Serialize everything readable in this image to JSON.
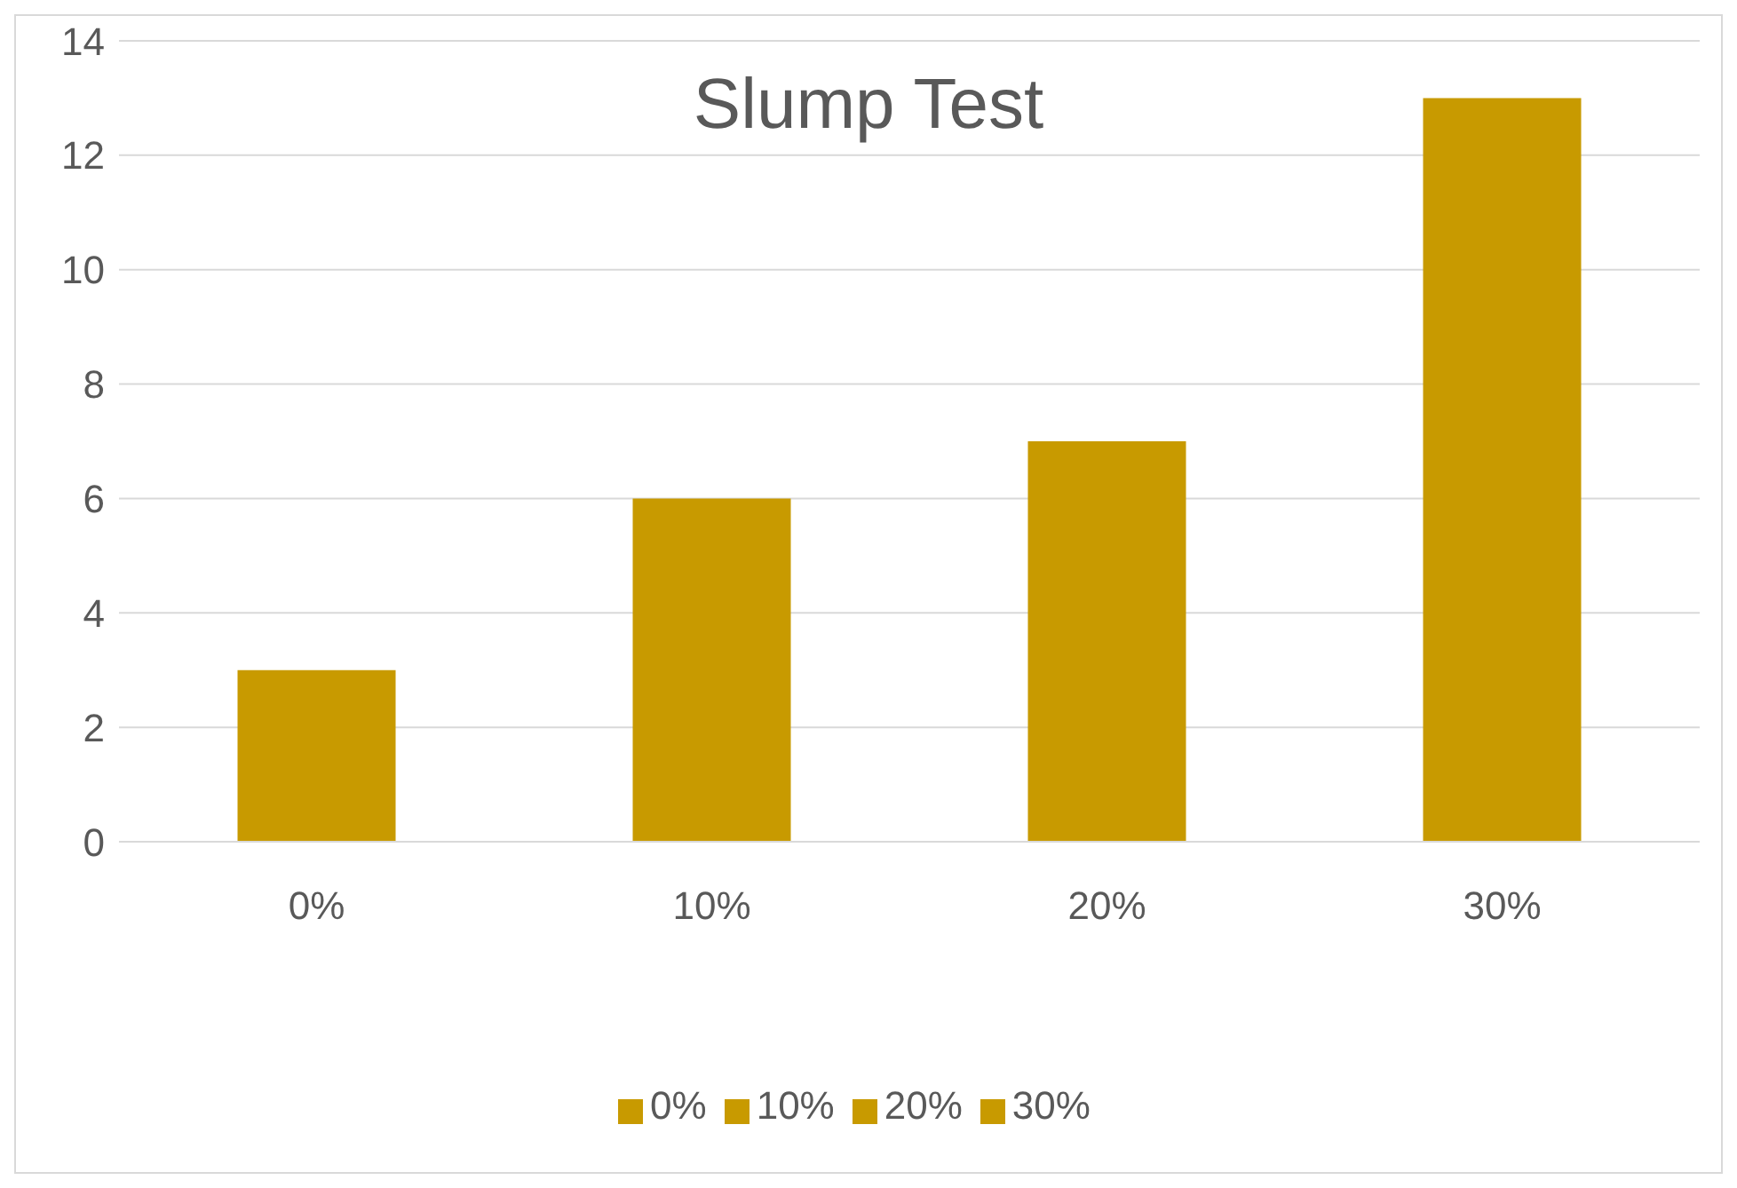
{
  "chart_data": {
    "type": "bar",
    "title": "Slump Test",
    "categories": [
      "0%",
      "10%",
      "20%",
      "30%"
    ],
    "stacked": true,
    "series": [
      {
        "name": "0%",
        "color": "#c89a00",
        "values": [
          3,
          null,
          null,
          null
        ]
      },
      {
        "name": "10%",
        "color": "#c89a00",
        "values": [
          null,
          6,
          null,
          null
        ]
      },
      {
        "name": "20%",
        "color": "#c89a00",
        "values": [
          null,
          null,
          7,
          null
        ]
      },
      {
        "name": "30%",
        "color": "#c89a00",
        "values": [
          null,
          null,
          null,
          13
        ]
      }
    ],
    "ylim": [
      0,
      14
    ],
    "yticks": [
      0,
      2,
      4,
      6,
      8,
      10,
      12,
      14
    ],
    "grid": "y",
    "legend": "bottom"
  }
}
